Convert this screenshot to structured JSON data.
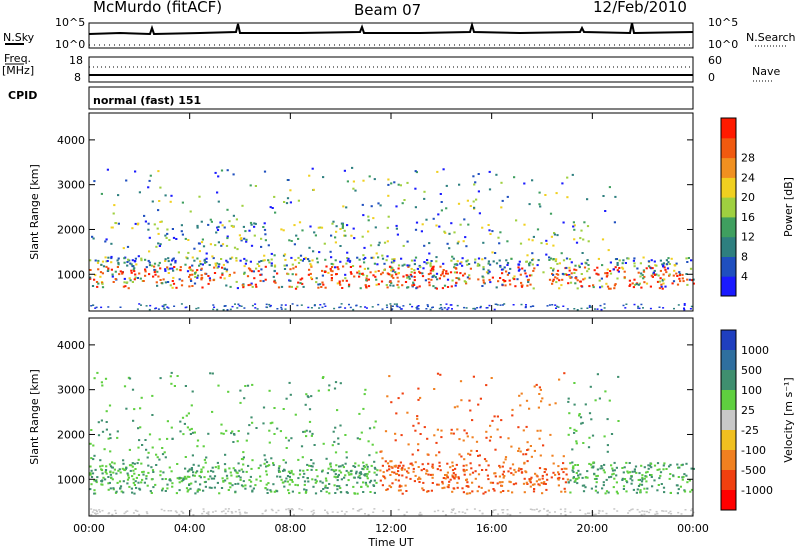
{
  "header": {
    "station": "McMurdo (fitACF)",
    "beam": "Beam 07",
    "date": "12/Feb/2010"
  },
  "status_panels": {
    "nsky_label": "N.Sky",
    "nsearch_label": "N.Search",
    "nsky_ticks": [
      "10^5",
      "10^0"
    ],
    "nsearch_ticks": [
      "10^5",
      "10^0"
    ],
    "freq_label_1": "Freq.",
    "freq_label_2": "[MHz]",
    "freq_ticks": [
      "18",
      "8"
    ],
    "nave_label": "Nave",
    "nave_ticks": [
      "60",
      "0"
    ],
    "cpid_label": "CPID",
    "cpid_value": "normal (fast) 151"
  },
  "chart_data": [
    {
      "type": "heatmap",
      "ylabel": "Slant Range [km]",
      "yticks": [
        1000,
        2000,
        3000,
        4000
      ],
      "ylim": [
        180,
        4600
      ],
      "xlabel": "",
      "xtick_labels": [
        "00:00",
        "04:00",
        "08:00",
        "12:00",
        "16:00",
        "20:00",
        "00:00"
      ],
      "xlim_hours": [
        0,
        24
      ],
      "colorbar": {
        "label": "Power [dB]",
        "ticks": [
          4,
          8,
          12,
          16,
          20,
          24,
          28
        ],
        "colors": [
          "#1a1aff",
          "#1f4fbf",
          "#2e7f7f",
          "#3f9f5f",
          "#9fd040",
          "#f0d020",
          "#f09020",
          "#f05a10",
          "#ff1a00"
        ]
      }
    },
    {
      "type": "heatmap",
      "ylabel": "Slant Range [km]",
      "yticks": [
        1000,
        2000,
        3000,
        4000
      ],
      "ylim": [
        180,
        4600
      ],
      "xlabel": "Time UT",
      "xtick_labels": [
        "00:00",
        "04:00",
        "08:00",
        "12:00",
        "16:00",
        "20:00",
        "00:00"
      ],
      "xlim_hours": [
        0,
        24
      ],
      "colorbar": {
        "label": "Velocity [m s⁻¹]",
        "ticks": [
          1000,
          500,
          100,
          25,
          -25,
          -100,
          -500,
          -1000
        ],
        "colors": [
          "#1f3fbf",
          "#2f6f9f",
          "#3f8f6f",
          "#5fcf3f",
          "#c8c8c8",
          "#f0c020",
          "#f08020",
          "#f04010",
          "#ff0000"
        ]
      }
    }
  ]
}
